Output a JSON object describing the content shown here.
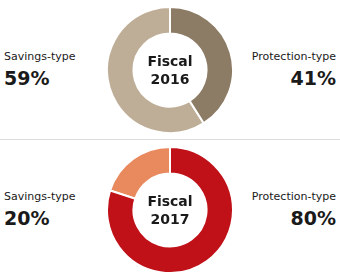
{
  "chart_data": [
    {
      "type": "donut",
      "title": "Fiscal\n2016",
      "categories": [
        "Savings-type",
        "Protection-type"
      ],
      "values": [
        59,
        41
      ],
      "value_labels": [
        "59%",
        "41%"
      ],
      "colors": [
        "#bfae97",
        "#8c7b65"
      ],
      "data_labels": true
    },
    {
      "type": "donut",
      "title": "Fiscal\n2017",
      "categories": [
        "Savings-type",
        "Protection-type"
      ],
      "values": [
        20,
        80
      ],
      "value_labels": [
        "20%",
        "80%"
      ],
      "colors": [
        "#e8895e",
        "#c01018"
      ],
      "data_labels": true
    }
  ]
}
